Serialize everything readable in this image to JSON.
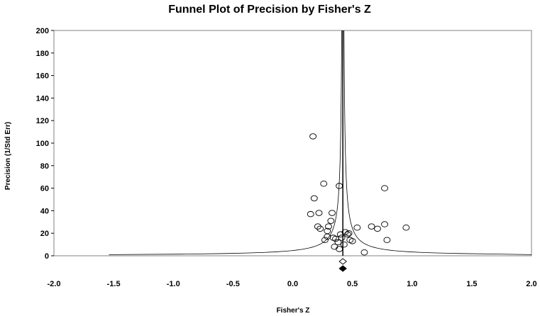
{
  "chart_data": {
    "type": "scatter",
    "title": "Funnel Plot of Precision by Fisher's Z",
    "xlabel": "Fisher's Z",
    "ylabel": "Precision (1/Std Err)",
    "xlim": [
      -2.0,
      2.0
    ],
    "ylim": [
      0,
      200
    ],
    "xticks": [
      "-2.0",
      "-1.5",
      "-1.0",
      "-0.5",
      "0.0",
      "0.5",
      "1.0",
      "1.5",
      "2.0"
    ],
    "yticks": [
      "0",
      "20",
      "40",
      "60",
      "80",
      "100",
      "120",
      "140",
      "160",
      "180",
      "200"
    ],
    "grid": false,
    "legend": "none",
    "summary_effect": 0.42,
    "summary_markers": [
      {
        "name": "observed-summary",
        "x": 0.42,
        "style": "open-diamond",
        "halfwidth": 0.03
      },
      {
        "name": "imputed-summary",
        "x": 0.42,
        "style": "filled-diamond",
        "halfwidth": 0.03
      }
    ],
    "funnel": {
      "center": 0.42,
      "z": 1.96
    },
    "points": [
      {
        "x": 0.17,
        "y": 106
      },
      {
        "x": 0.26,
        "y": 64
      },
      {
        "x": 0.39,
        "y": 62
      },
      {
        "x": 0.77,
        "y": 60
      },
      {
        "x": 0.18,
        "y": 51
      },
      {
        "x": 0.15,
        "y": 37
      },
      {
        "x": 0.22,
        "y": 38
      },
      {
        "x": 0.33,
        "y": 38
      },
      {
        "x": 0.32,
        "y": 31
      },
      {
        "x": 0.3,
        "y": 26
      },
      {
        "x": 0.21,
        "y": 26
      },
      {
        "x": 0.23,
        "y": 24
      },
      {
        "x": 0.29,
        "y": 22
      },
      {
        "x": 0.44,
        "y": 21
      },
      {
        "x": 0.47,
        "y": 20
      },
      {
        "x": 0.4,
        "y": 19
      },
      {
        "x": 0.46,
        "y": 19
      },
      {
        "x": 0.29,
        "y": 17
      },
      {
        "x": 0.34,
        "y": 16
      },
      {
        "x": 0.41,
        "y": 16
      },
      {
        "x": 0.36,
        "y": 15
      },
      {
        "x": 0.48,
        "y": 14
      },
      {
        "x": 0.27,
        "y": 14
      },
      {
        "x": 0.5,
        "y": 13
      },
      {
        "x": 0.38,
        "y": 12
      },
      {
        "x": 0.43,
        "y": 10
      },
      {
        "x": 0.35,
        "y": 8
      },
      {
        "x": 0.39,
        "y": 6
      },
      {
        "x": 0.54,
        "y": 25
      },
      {
        "x": 0.66,
        "y": 26
      },
      {
        "x": 0.71,
        "y": 24
      },
      {
        "x": 0.77,
        "y": 28
      },
      {
        "x": 0.95,
        "y": 25
      },
      {
        "x": 0.79,
        "y": 14
      },
      {
        "x": 0.6,
        "y": 3
      }
    ]
  }
}
